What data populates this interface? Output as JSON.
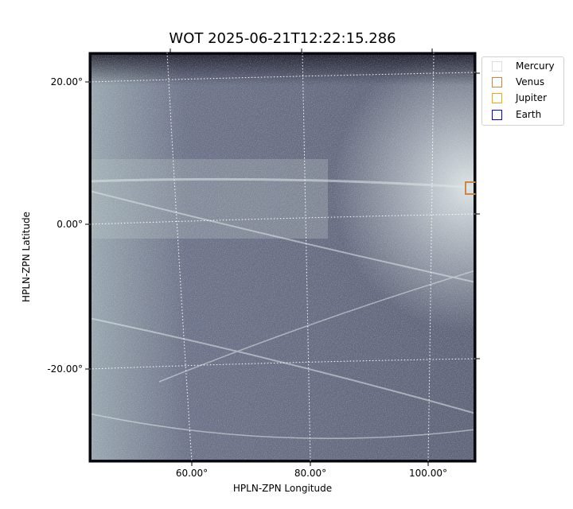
{
  "chart_data": {
    "type": "heatmap",
    "title": "WOT 2025-06-21T12:22:15.286",
    "xlabel": "HPLN-ZPN Longitude",
    "ylabel": "HPLN-ZPN Latitude",
    "x_ticks": [
      "60.00°",
      "80.00°",
      "100.00°"
    ],
    "y_ticks": [
      "20.00°",
      "0.00°",
      "-20.00°"
    ],
    "grid": true,
    "colormap": "bone",
    "legend": {
      "placement": "outside-top-right",
      "entries": [
        {
          "label": "Mercury",
          "color": "#dcdcdc"
        },
        {
          "label": "Venus",
          "color": "#cd853f"
        },
        {
          "label": "Jupiter",
          "color": "#ffa500"
        },
        {
          "label": "Earth",
          "color": "#0000ff"
        }
      ]
    },
    "markers": [
      {
        "label": "Venus",
        "lon": 107,
        "lat": 5
      }
    ]
  }
}
